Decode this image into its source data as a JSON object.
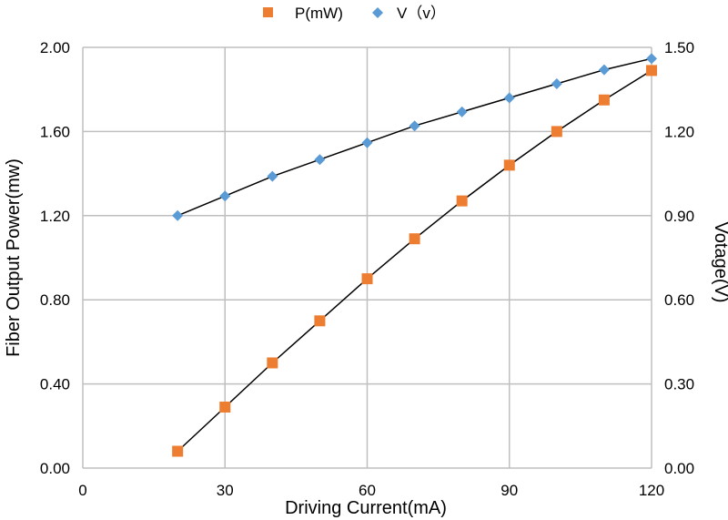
{
  "chart_data": {
    "type": "scatter",
    "xlabel": "Driving Current(mA)",
    "ylabel_left": "Fiber Output Power(mw)",
    "ylabel_right": "Votage(V)",
    "xlim": [
      0,
      120
    ],
    "ylim_left": [
      0,
      2.0
    ],
    "ylim_right": [
      0,
      1.5
    ],
    "grid": true,
    "legend_position": "top-center",
    "x_ticks": [
      "0",
      "30",
      "60",
      "90",
      "120"
    ],
    "y_left_ticks": [
      "0.00",
      "0.40",
      "0.80",
      "1.20",
      "1.60",
      "2.00"
    ],
    "y_right_ticks": [
      "0.00",
      "0.30",
      "0.60",
      "0.90",
      "1.20",
      "1.50"
    ],
    "series": [
      {
        "name": "P(mW)",
        "axis": "left",
        "marker": "square",
        "color": "#ED7D31",
        "x": [
          20,
          30,
          40,
          50,
          60,
          70,
          80,
          90,
          100,
          110,
          120
        ],
        "y": [
          0.08,
          0.29,
          0.5,
          0.7,
          0.9,
          1.09,
          1.27,
          1.44,
          1.6,
          1.75,
          1.89
        ]
      },
      {
        "name": "V（v）",
        "axis": "right",
        "marker": "diamond",
        "color": "#5B9BD5",
        "x": [
          20,
          30,
          40,
          50,
          60,
          70,
          80,
          90,
          100,
          110,
          120
        ],
        "y": [
          0.9,
          0.97,
          1.04,
          1.1,
          1.16,
          1.22,
          1.27,
          1.32,
          1.37,
          1.42,
          1.46
        ]
      }
    ],
    "trendline_color": "#000000"
  }
}
